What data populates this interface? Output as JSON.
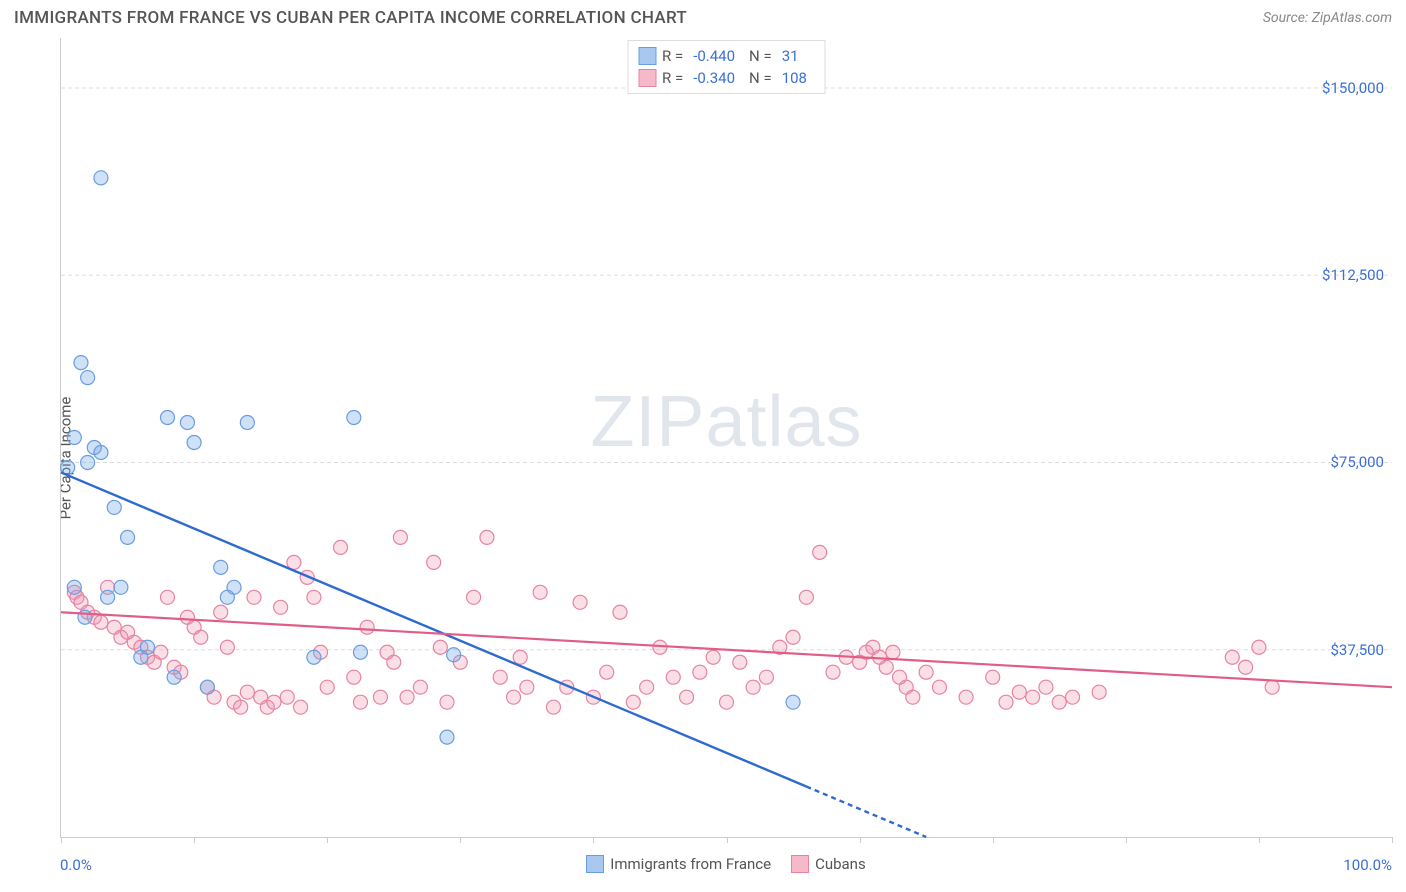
{
  "header": {
    "title": "IMMIGRANTS FROM FRANCE VS CUBAN PER CAPITA INCOME CORRELATION CHART",
    "source": "Source: ZipAtlas.com"
  },
  "chart": {
    "type": "scatter",
    "y_axis_label": "Per Capita Income",
    "xlim": [
      0,
      100
    ],
    "ylim": [
      0,
      160000
    ],
    "x_tick_labels": {
      "start": "0.0%",
      "end": "100.0%"
    },
    "x_tick_positions_pct": [
      0,
      10,
      20,
      30,
      40,
      50,
      60,
      70,
      80,
      90,
      100
    ],
    "y_ticks": [
      {
        "value": 37500,
        "label": "$37,500"
      },
      {
        "value": 75000,
        "label": "$75,000"
      },
      {
        "value": 112500,
        "label": "$112,500"
      },
      {
        "value": 150000,
        "label": "$150,000"
      }
    ],
    "background_color": "#ffffff",
    "grid_color": "#dddddd",
    "grid_dash": "4,3",
    "watermark": "ZIPatlas",
    "series": [
      {
        "id": "france",
        "label": "Immigrants from France",
        "color_fill": "rgba(118,168,228,0.35)",
        "color_stroke": "#6a9de0",
        "legend_box_fill": "#a9c8ef",
        "legend_box_stroke": "#6a9de0",
        "marker_radius": 7,
        "R": "-0.440",
        "N": "31",
        "trend_line": {
          "x1": 0,
          "y1": 73000,
          "x2": 65,
          "y2": 0,
          "color": "#2e6bd1",
          "width": 2.4,
          "dash_after_x": 56
        },
        "points": [
          [
            1.5,
            95000
          ],
          [
            2.0,
            92000
          ],
          [
            1.0,
            80000
          ],
          [
            2.5,
            78000
          ],
          [
            3.0,
            77000
          ],
          [
            2.0,
            75000
          ],
          [
            4.0,
            66000
          ],
          [
            5.0,
            60000
          ],
          [
            0.5,
            74000
          ],
          [
            3.5,
            48000
          ],
          [
            4.5,
            50000
          ],
          [
            8.0,
            84000
          ],
          [
            9.5,
            83000
          ],
          [
            10.0,
            79000
          ],
          [
            12.0,
            54000
          ],
          [
            12.5,
            48000
          ],
          [
            13.0,
            50000
          ],
          [
            6.0,
            36000
          ],
          [
            6.5,
            38000
          ],
          [
            8.5,
            32000
          ],
          [
            11.0,
            30000
          ],
          [
            14.0,
            83000
          ],
          [
            22.0,
            84000
          ],
          [
            19.0,
            36000
          ],
          [
            22.5,
            37000
          ],
          [
            29.0,
            20000
          ],
          [
            29.5,
            36500
          ],
          [
            3.0,
            132000
          ],
          [
            55.0,
            27000
          ],
          [
            1.0,
            50000
          ],
          [
            1.8,
            44000
          ]
        ]
      },
      {
        "id": "cubans",
        "label": "Cubans",
        "color_fill": "rgba(240,150,175,0.30)",
        "color_stroke": "#e783a0",
        "legend_box_fill": "#f5b9c9",
        "legend_box_stroke": "#e783a0",
        "marker_radius": 7,
        "R": "-0.340",
        "N": "108",
        "trend_line": {
          "x1": 0,
          "y1": 45000,
          "x2": 100,
          "y2": 30000,
          "color": "#e05e85",
          "width": 2.2
        },
        "points": [
          [
            1.0,
            49000
          ],
          [
            1.2,
            48000
          ],
          [
            1.5,
            47000
          ],
          [
            2.0,
            45000
          ],
          [
            2.5,
            44000
          ],
          [
            3.0,
            43000
          ],
          [
            3.5,
            50000
          ],
          [
            4.0,
            42000
          ],
          [
            4.5,
            40000
          ],
          [
            5.0,
            41000
          ],
          [
            5.5,
            39000
          ],
          [
            6.0,
            38000
          ],
          [
            6.5,
            36000
          ],
          [
            7.0,
            35000
          ],
          [
            7.5,
            37000
          ],
          [
            8.0,
            48000
          ],
          [
            8.5,
            34000
          ],
          [
            9.0,
            33000
          ],
          [
            9.5,
            44000
          ],
          [
            10.0,
            42000
          ],
          [
            10.5,
            40000
          ],
          [
            11.0,
            30000
          ],
          [
            11.5,
            28000
          ],
          [
            12.0,
            45000
          ],
          [
            12.5,
            38000
          ],
          [
            13.0,
            27000
          ],
          [
            13.5,
            26000
          ],
          [
            14.0,
            29000
          ],
          [
            14.5,
            48000
          ],
          [
            15.0,
            28000
          ],
          [
            15.5,
            26000
          ],
          [
            16.0,
            27000
          ],
          [
            16.5,
            46000
          ],
          [
            17.0,
            28000
          ],
          [
            17.5,
            55000
          ],
          [
            18.0,
            26000
          ],
          [
            18.5,
            52000
          ],
          [
            19.0,
            48000
          ],
          [
            19.5,
            37000
          ],
          [
            20.0,
            30000
          ],
          [
            21.0,
            58000
          ],
          [
            22.0,
            32000
          ],
          [
            22.5,
            27000
          ],
          [
            23.0,
            42000
          ],
          [
            24.0,
            28000
          ],
          [
            24.5,
            37000
          ],
          [
            25.0,
            35000
          ],
          [
            25.5,
            60000
          ],
          [
            26.0,
            28000
          ],
          [
            27.0,
            30000
          ],
          [
            28.0,
            55000
          ],
          [
            28.5,
            38000
          ],
          [
            29.0,
            27000
          ],
          [
            30.0,
            35000
          ],
          [
            31.0,
            48000
          ],
          [
            32.0,
            60000
          ],
          [
            33.0,
            32000
          ],
          [
            34.0,
            28000
          ],
          [
            34.5,
            36000
          ],
          [
            35.0,
            30000
          ],
          [
            36.0,
            49000
          ],
          [
            37.0,
            26000
          ],
          [
            38.0,
            30000
          ],
          [
            39.0,
            47000
          ],
          [
            40.0,
            28000
          ],
          [
            41.0,
            33000
          ],
          [
            42.0,
            45000
          ],
          [
            43.0,
            27000
          ],
          [
            44.0,
            30000
          ],
          [
            45.0,
            38000
          ],
          [
            46.0,
            32000
          ],
          [
            47.0,
            28000
          ],
          [
            48.0,
            33000
          ],
          [
            49.0,
            36000
          ],
          [
            50.0,
            27000
          ],
          [
            51.0,
            35000
          ],
          [
            52.0,
            30000
          ],
          [
            53.0,
            32000
          ],
          [
            54.0,
            38000
          ],
          [
            55.0,
            40000
          ],
          [
            56.0,
            48000
          ],
          [
            57.0,
            57000
          ],
          [
            58.0,
            33000
          ],
          [
            59.0,
            36000
          ],
          [
            60.0,
            35000
          ],
          [
            60.5,
            37000
          ],
          [
            61.0,
            38000
          ],
          [
            61.5,
            36000
          ],
          [
            62.0,
            34000
          ],
          [
            62.5,
            37000
          ],
          [
            63.0,
            32000
          ],
          [
            63.5,
            30000
          ],
          [
            64.0,
            28000
          ],
          [
            65.0,
            33000
          ],
          [
            66.0,
            30000
          ],
          [
            68.0,
            28000
          ],
          [
            70.0,
            32000
          ],
          [
            71.0,
            27000
          ],
          [
            72.0,
            29000
          ],
          [
            73.0,
            28000
          ],
          [
            74.0,
            30000
          ],
          [
            75.0,
            27000
          ],
          [
            76.0,
            28000
          ],
          [
            78.0,
            29000
          ],
          [
            88.0,
            36000
          ],
          [
            89.0,
            34000
          ],
          [
            90.0,
            38000
          ],
          [
            91.0,
            30000
          ]
        ]
      }
    ]
  }
}
